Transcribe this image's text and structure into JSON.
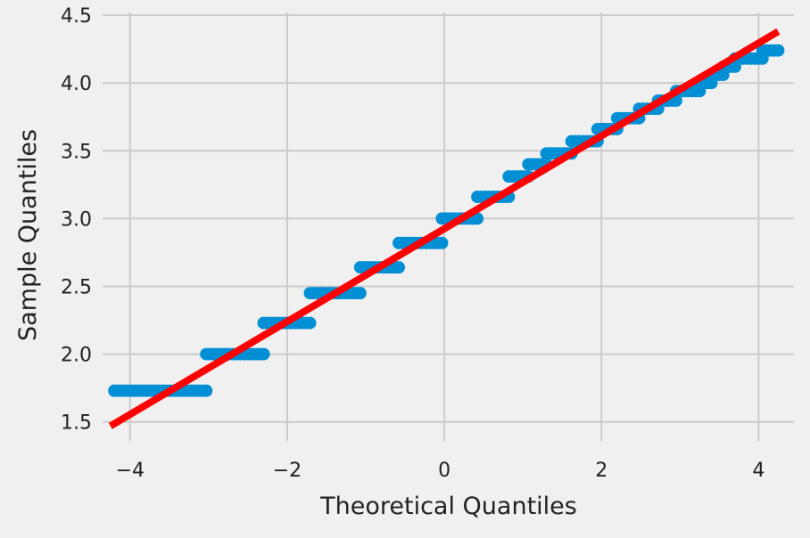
{
  "chart_data": {
    "type": "scatter",
    "title": "",
    "xlabel": "Theoretical Quantiles",
    "ylabel": "Sample Quantiles",
    "xlim": [
      -4.35,
      4.45
    ],
    "ylim": [
      1.36,
      4.52
    ],
    "xticks": [
      -4,
      -2,
      0,
      2,
      4
    ],
    "xtick_labels": [
      "−4",
      "−2",
      "0",
      "2",
      "4"
    ],
    "yticks": [
      1.5,
      2.0,
      2.5,
      3.0,
      3.5,
      4.0,
      4.5
    ],
    "ytick_labels": [
      "1.5",
      "2.0",
      "2.5",
      "3.0",
      "3.5",
      "4.0",
      "4.5"
    ],
    "grid": true,
    "legend": "none",
    "point_color": "#008fd5",
    "line_color": "#ff0000",
    "background_color": "#f0f0f0",
    "grid_color": "#cbcbcb",
    "step_groups": [
      {
        "y": 1.73,
        "x_start": -4.2,
        "x_end": -3.03
      },
      {
        "y": 2.0,
        "x_start": -3.03,
        "x_end": -2.3
      },
      {
        "y": 2.23,
        "x_start": -2.3,
        "x_end": -1.71
      },
      {
        "y": 2.45,
        "x_start": -1.71,
        "x_end": -1.07
      },
      {
        "y": 2.64,
        "x_start": -1.07,
        "x_end": -0.58
      },
      {
        "y": 2.82,
        "x_start": -0.58,
        "x_end": -0.03
      },
      {
        "y": 3.0,
        "x_start": -0.03,
        "x_end": 0.42
      },
      {
        "y": 3.16,
        "x_start": 0.42,
        "x_end": 0.82
      },
      {
        "y": 3.31,
        "x_start": 0.82,
        "x_end": 1.07
      },
      {
        "y": 3.4,
        "x_start": 1.07,
        "x_end": 1.3
      },
      {
        "y": 3.48,
        "x_start": 1.3,
        "x_end": 1.62
      },
      {
        "y": 3.57,
        "x_start": 1.62,
        "x_end": 1.95
      },
      {
        "y": 3.66,
        "x_start": 1.95,
        "x_end": 2.2
      },
      {
        "y": 3.74,
        "x_start": 2.2,
        "x_end": 2.48
      },
      {
        "y": 3.81,
        "x_start": 2.48,
        "x_end": 2.72
      },
      {
        "y": 3.87,
        "x_start": 2.72,
        "x_end": 2.95
      },
      {
        "y": 3.94,
        "x_start": 2.95,
        "x_end": 3.25
      },
      {
        "y": 4.0,
        "x_start": 3.25,
        "x_end": 3.4
      },
      {
        "y": 4.06,
        "x_start": 3.4,
        "x_end": 3.55
      },
      {
        "y": 4.12,
        "x_start": 3.55,
        "x_end": 3.7
      },
      {
        "y": 4.18,
        "x_start": 3.7,
        "x_end": 4.05
      },
      {
        "y": 4.24,
        "x_start": 4.05,
        "x_end": 4.25
      }
    ],
    "reference_line": {
      "x": [
        -4.25,
        4.25
      ],
      "y": [
        1.47,
        4.38
      ]
    }
  }
}
